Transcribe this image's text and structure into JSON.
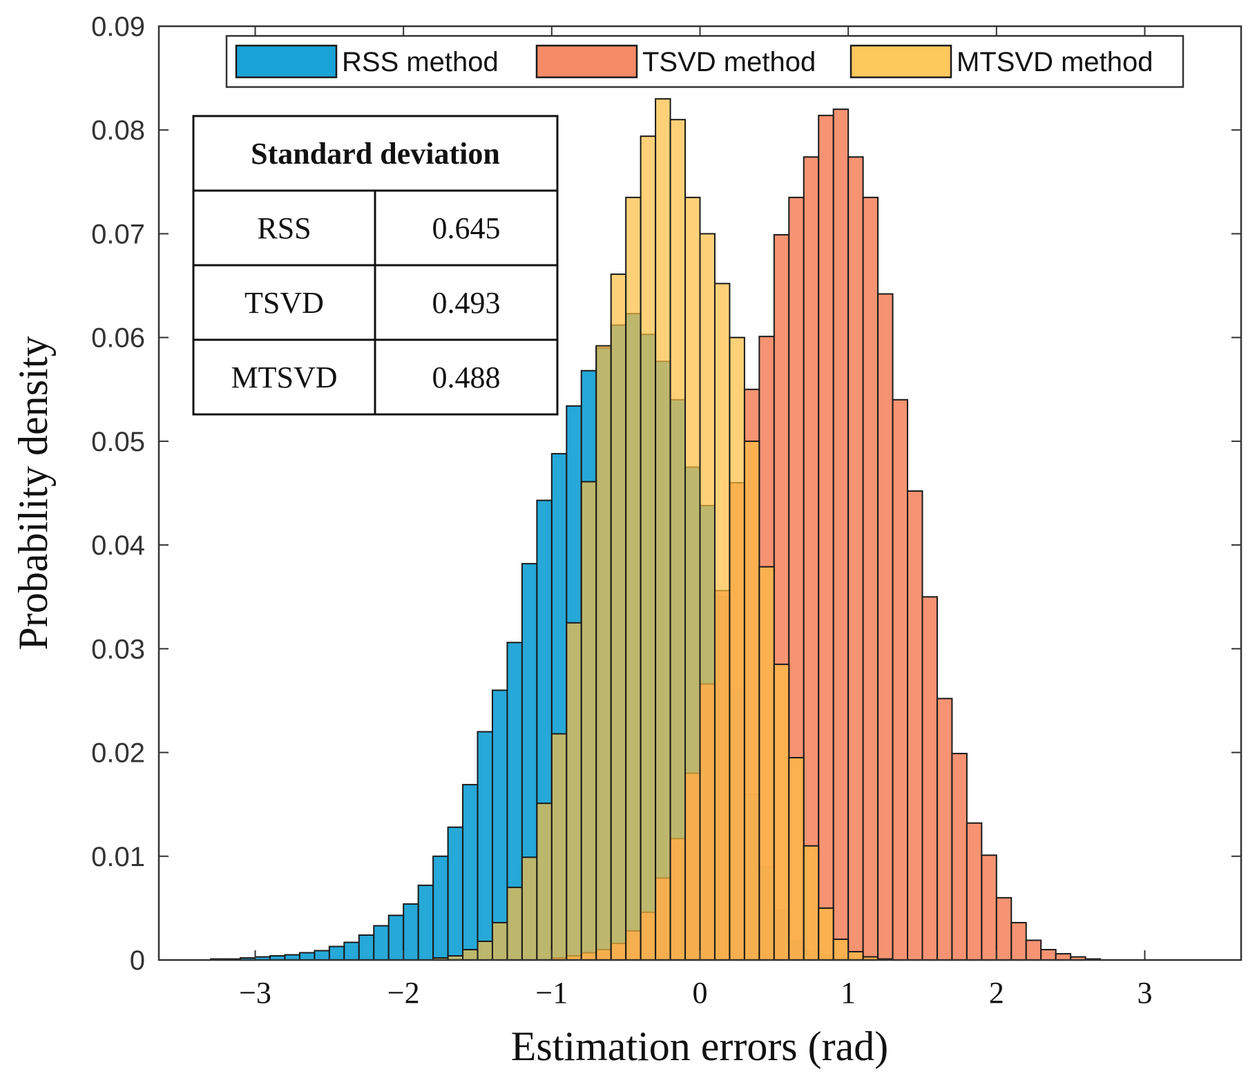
{
  "chart_data": {
    "type": "bar",
    "subtype": "overlaid-histogram",
    "title": "",
    "xlabel": "Estimation errors (rad)",
    "ylabel": "Probability density",
    "xlim": [
      -3.65,
      3.65
    ],
    "ylim": [
      0,
      0.09
    ],
    "bin_width": 0.1,
    "xticks": [
      -3,
      -2,
      -1,
      0,
      1,
      2,
      3
    ],
    "xtick_labels": [
      "−3",
      "−2",
      "−1",
      "0",
      "1",
      "2",
      "3"
    ],
    "yticks": [
      0,
      0.01,
      0.02,
      0.03,
      0.04,
      0.05,
      0.06,
      0.07,
      0.08,
      0.09
    ],
    "ytick_labels": [
      "0",
      "0.01",
      "0.02",
      "0.03",
      "0.04",
      "0.05",
      "0.06",
      "0.07",
      "0.08",
      "0.09"
    ],
    "legend_position": "top",
    "series": [
      {
        "name": "RSS method",
        "color": "#1aa3d6",
        "opacity": 0.95,
        "bin_start": -3.3,
        "values": [
          0.0001,
          0.0001,
          0.0002,
          0.0003,
          0.0004,
          0.0005,
          0.0007,
          0.0009,
          0.0013,
          0.0017,
          0.0024,
          0.0033,
          0.0043,
          0.0054,
          0.0072,
          0.01,
          0.0128,
          0.0169,
          0.022,
          0.026,
          0.0306,
          0.0382,
          0.0443,
          0.0488,
          0.0534,
          0.0568,
          0.059,
          0.0612,
          0.0623,
          0.0603,
          0.0577,
          0.054,
          0.0475,
          0.0438,
          0.035,
          0.0261,
          0.016,
          0.009,
          0.0048,
          0.0018,
          0.0009,
          0.0004,
          0.0002,
          0.0001
        ]
      },
      {
        "name": "TSVD method",
        "color": "#f58a66",
        "opacity": 0.92,
        "bin_start": -1.0,
        "values": [
          0.0002,
          0.0004,
          0.0007,
          0.001,
          0.0016,
          0.0028,
          0.0046,
          0.0079,
          0.0117,
          0.018,
          0.0266,
          0.0356,
          0.046,
          0.055,
          0.0601,
          0.0699,
          0.0735,
          0.0774,
          0.0814,
          0.082,
          0.0774,
          0.0735,
          0.0642,
          0.054,
          0.0452,
          0.035,
          0.0252,
          0.0199,
          0.0132,
          0.0101,
          0.006,
          0.0036,
          0.0019,
          0.001,
          0.0006,
          0.0003,
          0.0001
        ]
      },
      {
        "name": "MTSVD method",
        "color": "#fdbe40",
        "opacity": 0.7,
        "bin_start": -1.8,
        "values": [
          0.0002,
          0.0004,
          0.001,
          0.0018,
          0.0036,
          0.007,
          0.0099,
          0.0151,
          0.0218,
          0.0325,
          0.0461,
          0.0592,
          0.0661,
          0.0735,
          0.0794,
          0.083,
          0.081,
          0.0735,
          0.07,
          0.0652,
          0.06,
          0.05,
          0.0379,
          0.0285,
          0.0195,
          0.011,
          0.005,
          0.002,
          0.0008,
          0.0003,
          0.0001
        ]
      }
    ],
    "table": {
      "header": "Standard deviation",
      "rows": [
        {
          "method": "RSS",
          "value": "0.645"
        },
        {
          "method": "TSVD",
          "value": "0.493"
        },
        {
          "method": "MTSVD",
          "value": "0.488"
        }
      ]
    }
  }
}
